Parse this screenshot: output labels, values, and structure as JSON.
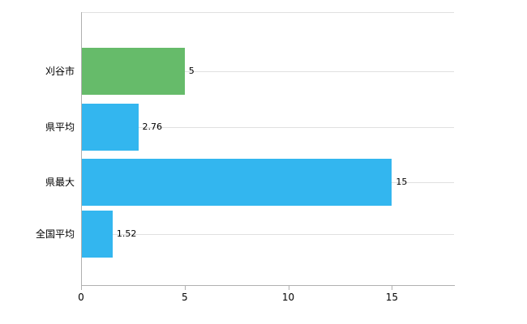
{
  "chart_data": {
    "type": "bar",
    "orientation": "horizontal",
    "title": "",
    "xlabel": "",
    "ylabel": "",
    "categories": [
      "刈谷市",
      "県平均",
      "県最大",
      "全国平均"
    ],
    "values": [
      5,
      2.76,
      15,
      1.52
    ],
    "value_labels": [
      "5",
      "2.76",
      "15",
      "1.52"
    ],
    "bar_colors": [
      "#66bb6a",
      "#33b6ef",
      "#33b6ef",
      "#33b6ef"
    ],
    "x_ticks": [
      0,
      5,
      10,
      15
    ],
    "xlim": [
      0,
      18
    ],
    "grid": "horizontal gridlines at category centers plus top boundary line",
    "legend": "none",
    "colors": {
      "highlight_bar": "#66bb6a",
      "default_bar": "#33b6ef",
      "axis": "#b0b0b0",
      "gridline": "#e0e0e0",
      "text": "#000000",
      "background": "#ffffff"
    }
  }
}
